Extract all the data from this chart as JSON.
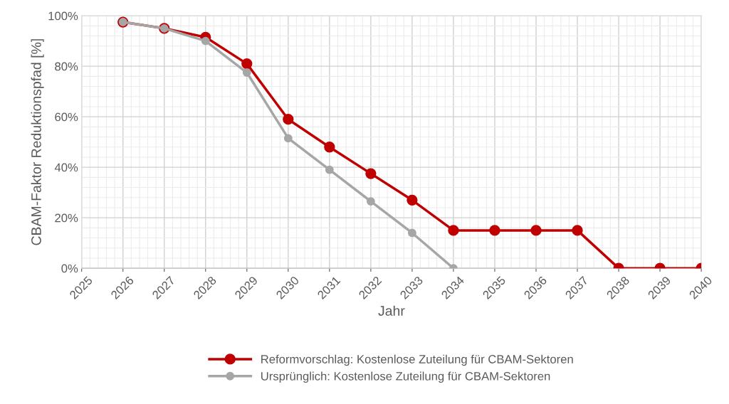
{
  "chart_data": {
    "type": "line",
    "xlabel": "Jahr",
    "ylabel": "CBAM-Faktor Reduktionspfad [%]",
    "xlim": [
      2025,
      2040
    ],
    "xticks": [
      2025,
      2026,
      2027,
      2028,
      2029,
      2030,
      2031,
      2032,
      2033,
      2034,
      2035,
      2036,
      2037,
      2038,
      2039,
      2040
    ],
    "ylim": [
      0,
      100
    ],
    "yticks": [
      {
        "value": 0,
        "label": "0%"
      },
      {
        "value": 20,
        "label": "20%"
      },
      {
        "value": 40,
        "label": "40%"
      },
      {
        "value": 60,
        "label": "60%"
      },
      {
        "value": 80,
        "label": "80%"
      },
      {
        "value": 100,
        "label": "100%"
      }
    ],
    "grid": true,
    "legend": "bottom",
    "marker": "circle",
    "line_style": "solid",
    "series": [
      {
        "name": "Reformvorschlag: Kostenlose Zuteilung für CBAM-Sektoren",
        "color": "#c00000",
        "x": [
          2026,
          2027,
          2028,
          2029,
          2030,
          2031,
          2032,
          2033,
          2034,
          2035,
          2036,
          2037,
          2038,
          2039,
          2040
        ],
        "values": [
          97.5,
          95,
          91.5,
          81,
          59,
          48,
          37.5,
          27,
          15,
          15,
          15,
          15,
          0,
          0,
          0
        ]
      },
      {
        "name": "Ursprünglich: Kostenlose Zuteilung für CBAM-Sektoren",
        "color": "#a6a6a6",
        "x": [
          2026,
          2027,
          2028,
          2029,
          2030,
          2031,
          2032,
          2033,
          2034
        ],
        "values": [
          97.5,
          95,
          90,
          77.5,
          51.5,
          39,
          26.5,
          14,
          0
        ]
      }
    ]
  }
}
